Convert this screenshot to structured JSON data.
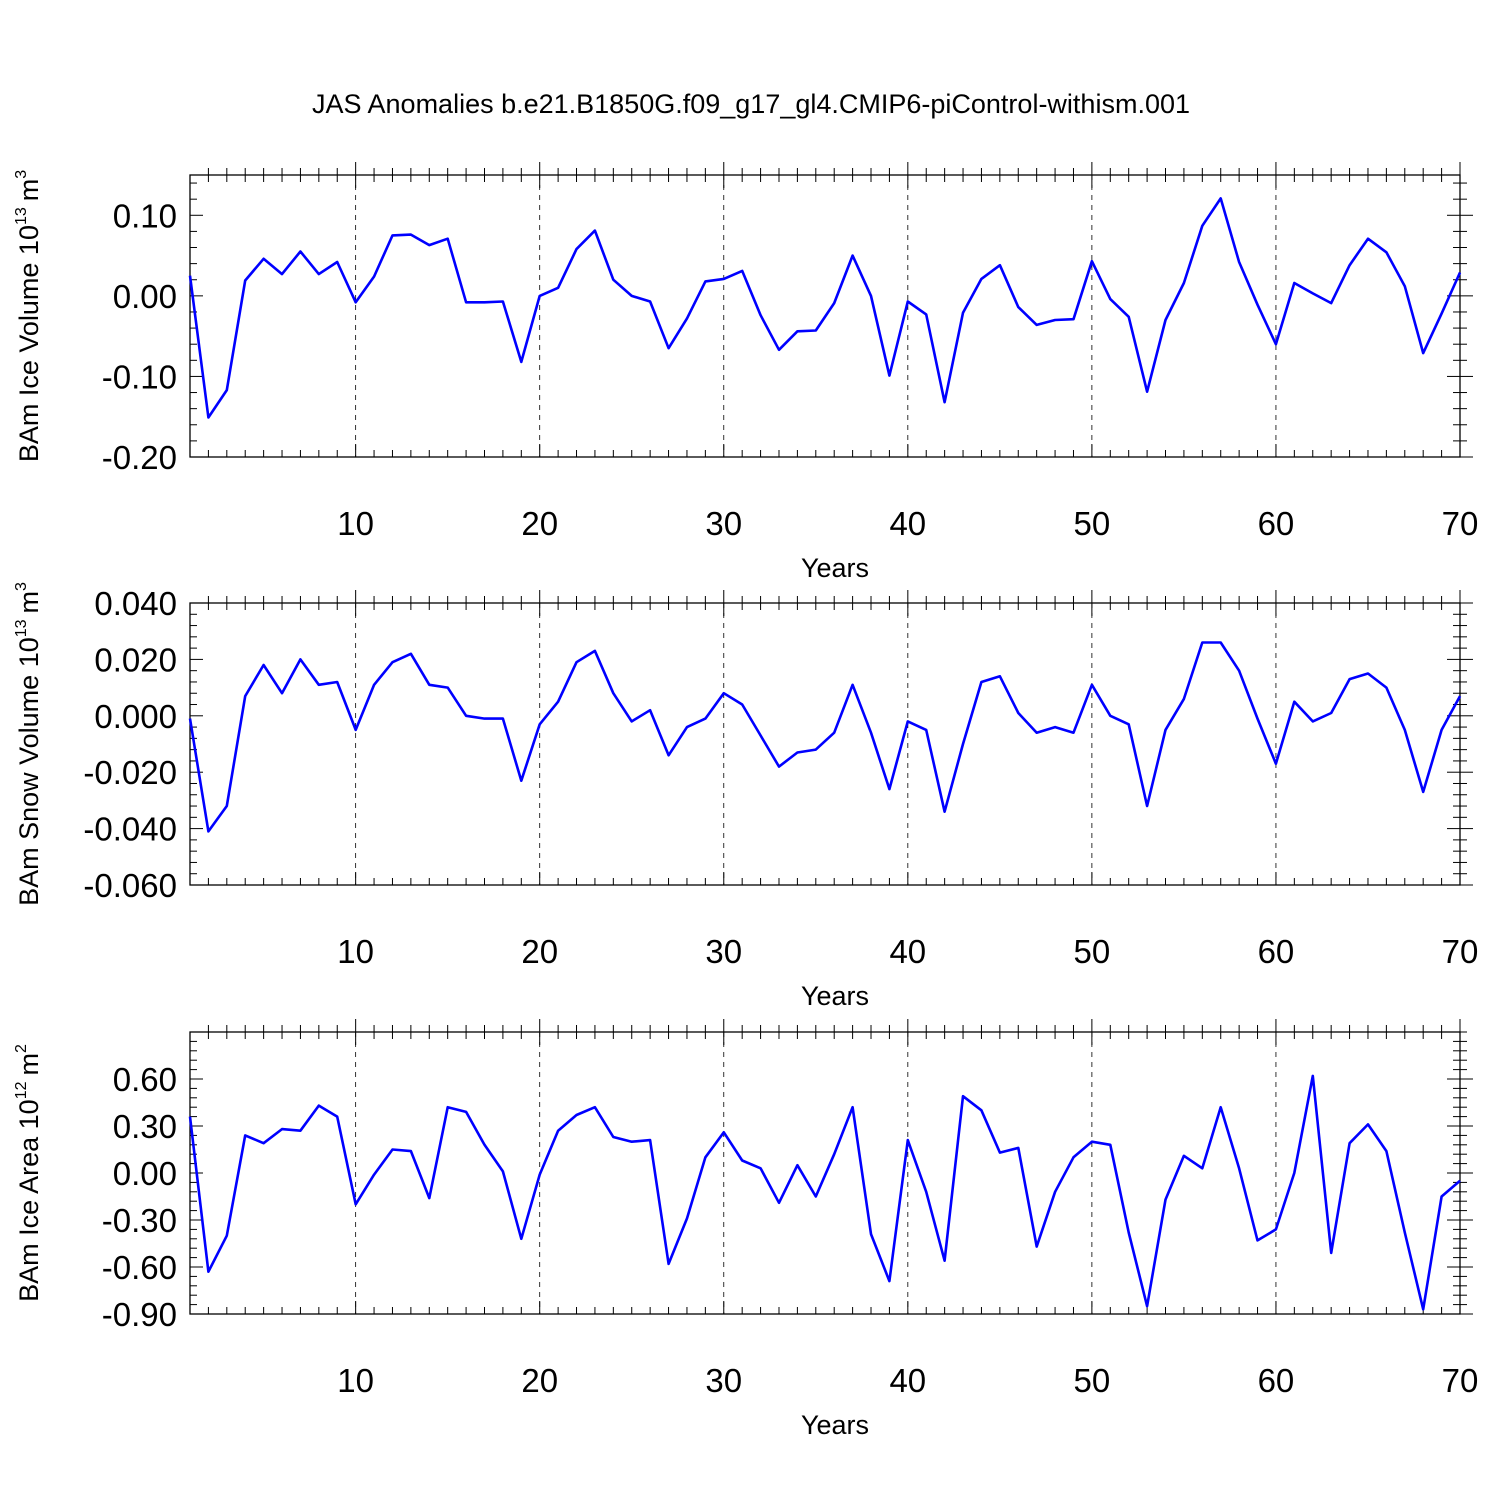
{
  "chart_data": [
    {
      "type": "line",
      "title": "JAS Anomalies b.e21.B1850G.f09_g17_gl4.CMIP6-piControl-withism.001",
      "xlabel": "Years",
      "ylabel": "BAm Ice Volume 10",
      "ylabel_sup": "13",
      "ylabel_unit": "m",
      "ylabel_unit_sup": "3",
      "xlim": [
        1,
        70
      ],
      "ylim": [
        -0.2,
        0.15
      ],
      "xticks": [
        10,
        20,
        30,
        40,
        50,
        60,
        70
      ],
      "xtick_labels": [
        "10",
        "20",
        "30",
        "40",
        "50",
        "60",
        "70"
      ],
      "yticks": [
        -0.2,
        -0.1,
        0.0,
        0.1
      ],
      "ytick_labels": [
        "-0.20",
        "-0.10",
        "0.00",
        "0.10"
      ],
      "grid": "vertical dashed at major x ticks",
      "color": "#0000ff",
      "x": [
        1,
        2,
        3,
        4,
        5,
        6,
        7,
        8,
        9,
        10,
        11,
        12,
        13,
        14,
        15,
        16,
        17,
        18,
        19,
        20,
        21,
        22,
        23,
        24,
        25,
        26,
        27,
        28,
        29,
        30,
        31,
        32,
        33,
        34,
        35,
        36,
        37,
        38,
        39,
        40,
        41,
        42,
        43,
        44,
        45,
        46,
        47,
        48,
        49,
        50,
        51,
        52,
        53,
        54,
        55,
        56,
        57,
        58,
        59,
        60,
        61,
        62,
        63,
        64,
        65,
        66,
        67,
        68,
        69,
        70
      ],
      "values": [
        0.025,
        -0.151,
        -0.117,
        0.019,
        0.046,
        0.027,
        0.055,
        0.027,
        0.042,
        -0.008,
        0.024,
        0.075,
        0.076,
        0.063,
        0.071,
        -0.008,
        -0.008,
        -0.007,
        -0.082,
        0.0,
        0.01,
        0.058,
        0.081,
        0.02,
        0.0,
        -0.007,
        -0.065,
        -0.028,
        0.018,
        0.021,
        0.031,
        -0.024,
        -0.067,
        -0.044,
        -0.043,
        -0.009,
        0.05,
        0.0,
        -0.099,
        -0.007,
        -0.023,
        -0.132,
        -0.021,
        0.021,
        0.038,
        -0.014,
        -0.036,
        -0.03,
        -0.029,
        0.043,
        -0.004,
        -0.026,
        -0.119,
        -0.03,
        0.016,
        0.087,
        0.121,
        0.042,
        -0.011,
        -0.06,
        0.016,
        0.003,
        -0.009,
        0.038,
        0.071,
        0.054,
        0.012,
        -0.071,
        -0.022,
        0.029
      ]
    },
    {
      "type": "line",
      "title": "",
      "xlabel": "Years",
      "ylabel": "BAm Snow Volume 10",
      "ylabel_sup": "13",
      "ylabel_unit": "m",
      "ylabel_unit_sup": "3",
      "xlim": [
        1,
        70
      ],
      "ylim": [
        -0.06,
        0.04
      ],
      "xticks": [
        10,
        20,
        30,
        40,
        50,
        60,
        70
      ],
      "xtick_labels": [
        "10",
        "20",
        "30",
        "40",
        "50",
        "60",
        "70"
      ],
      "yticks": [
        -0.06,
        -0.04,
        -0.02,
        0.0,
        0.02,
        0.04
      ],
      "ytick_labels": [
        "-0.060",
        "-0.040",
        "-0.020",
        "0.000",
        "0.020",
        "0.040"
      ],
      "grid": "vertical dashed at major x ticks",
      "color": "#0000ff",
      "x": [
        1,
        2,
        3,
        4,
        5,
        6,
        7,
        8,
        9,
        10,
        11,
        12,
        13,
        14,
        15,
        16,
        17,
        18,
        19,
        20,
        21,
        22,
        23,
        24,
        25,
        26,
        27,
        28,
        29,
        30,
        31,
        32,
        33,
        34,
        35,
        36,
        37,
        38,
        39,
        40,
        41,
        42,
        43,
        44,
        45,
        46,
        47,
        48,
        49,
        50,
        51,
        52,
        53,
        54,
        55,
        56,
        57,
        58,
        59,
        60,
        61,
        62,
        63,
        64,
        65,
        66,
        67,
        68,
        69,
        70
      ],
      "values": [
        -0.001,
        -0.041,
        -0.032,
        0.007,
        0.018,
        0.008,
        0.02,
        0.011,
        0.012,
        -0.005,
        0.011,
        0.019,
        0.022,
        0.011,
        0.01,
        0.0,
        -0.001,
        -0.001,
        -0.023,
        -0.003,
        0.005,
        0.019,
        0.023,
        0.008,
        -0.002,
        0.002,
        -0.014,
        -0.004,
        -0.001,
        0.008,
        0.004,
        -0.007,
        -0.018,
        -0.013,
        -0.012,
        -0.006,
        0.011,
        -0.006,
        -0.026,
        -0.002,
        -0.005,
        -0.034,
        -0.01,
        0.012,
        0.014,
        0.001,
        -0.006,
        -0.004,
        -0.006,
        0.011,
        0.0,
        -0.003,
        -0.032,
        -0.005,
        0.006,
        0.026,
        0.026,
        0.016,
        -0.001,
        -0.017,
        0.005,
        -0.002,
        0.001,
        0.013,
        0.015,
        0.01,
        -0.005,
        -0.027,
        -0.005,
        0.007
      ]
    },
    {
      "type": "line",
      "title": "",
      "xlabel": "Years",
      "ylabel": "BAm Ice Area 10",
      "ylabel_sup": "12",
      "ylabel_unit": "m",
      "ylabel_unit_sup": "2",
      "xlim": [
        1,
        70
      ],
      "ylim": [
        -0.9,
        0.9
      ],
      "xticks": [
        10,
        20,
        30,
        40,
        50,
        60,
        70
      ],
      "xtick_labels": [
        "10",
        "20",
        "30",
        "40",
        "50",
        "60",
        "70"
      ],
      "yticks": [
        -0.9,
        -0.6,
        -0.3,
        0.0,
        0.3,
        0.6
      ],
      "ytick_labels": [
        "-0.90",
        "-0.60",
        "-0.30",
        "0.00",
        "0.30",
        "0.60"
      ],
      "grid": "vertical dashed at major x ticks",
      "color": "#0000ff",
      "x": [
        1,
        2,
        3,
        4,
        5,
        6,
        7,
        8,
        9,
        10,
        11,
        12,
        13,
        14,
        15,
        16,
        17,
        18,
        19,
        20,
        21,
        22,
        23,
        24,
        25,
        26,
        27,
        28,
        29,
        30,
        31,
        32,
        33,
        34,
        35,
        36,
        37,
        38,
        39,
        40,
        41,
        42,
        43,
        44,
        45,
        46,
        47,
        48,
        49,
        50,
        51,
        52,
        53,
        54,
        55,
        56,
        57,
        58,
        59,
        60,
        61,
        62,
        63,
        64,
        65,
        66,
        67,
        68,
        69,
        70
      ],
      "values": [
        0.36,
        -0.63,
        -0.4,
        0.24,
        0.19,
        0.28,
        0.27,
        0.43,
        0.36,
        -0.2,
        -0.01,
        0.15,
        0.14,
        -0.16,
        0.42,
        0.39,
        0.18,
        0.01,
        -0.42,
        -0.01,
        0.27,
        0.37,
        0.42,
        0.23,
        0.2,
        0.21,
        -0.58,
        -0.29,
        0.1,
        0.26,
        0.08,
        0.03,
        -0.19,
        0.05,
        -0.15,
        0.12,
        0.42,
        -0.39,
        -0.69,
        0.21,
        -0.12,
        -0.56,
        0.49,
        0.4,
        0.13,
        0.16,
        -0.47,
        -0.12,
        0.1,
        0.2,
        0.18,
        -0.38,
        -0.85,
        -0.17,
        0.11,
        0.03,
        0.42,
        0.03,
        -0.43,
        -0.36,
        0.0,
        0.62,
        -0.51,
        0.19,
        0.31,
        0.14,
        -0.38,
        -0.87,
        -0.15,
        -0.05
      ]
    }
  ]
}
